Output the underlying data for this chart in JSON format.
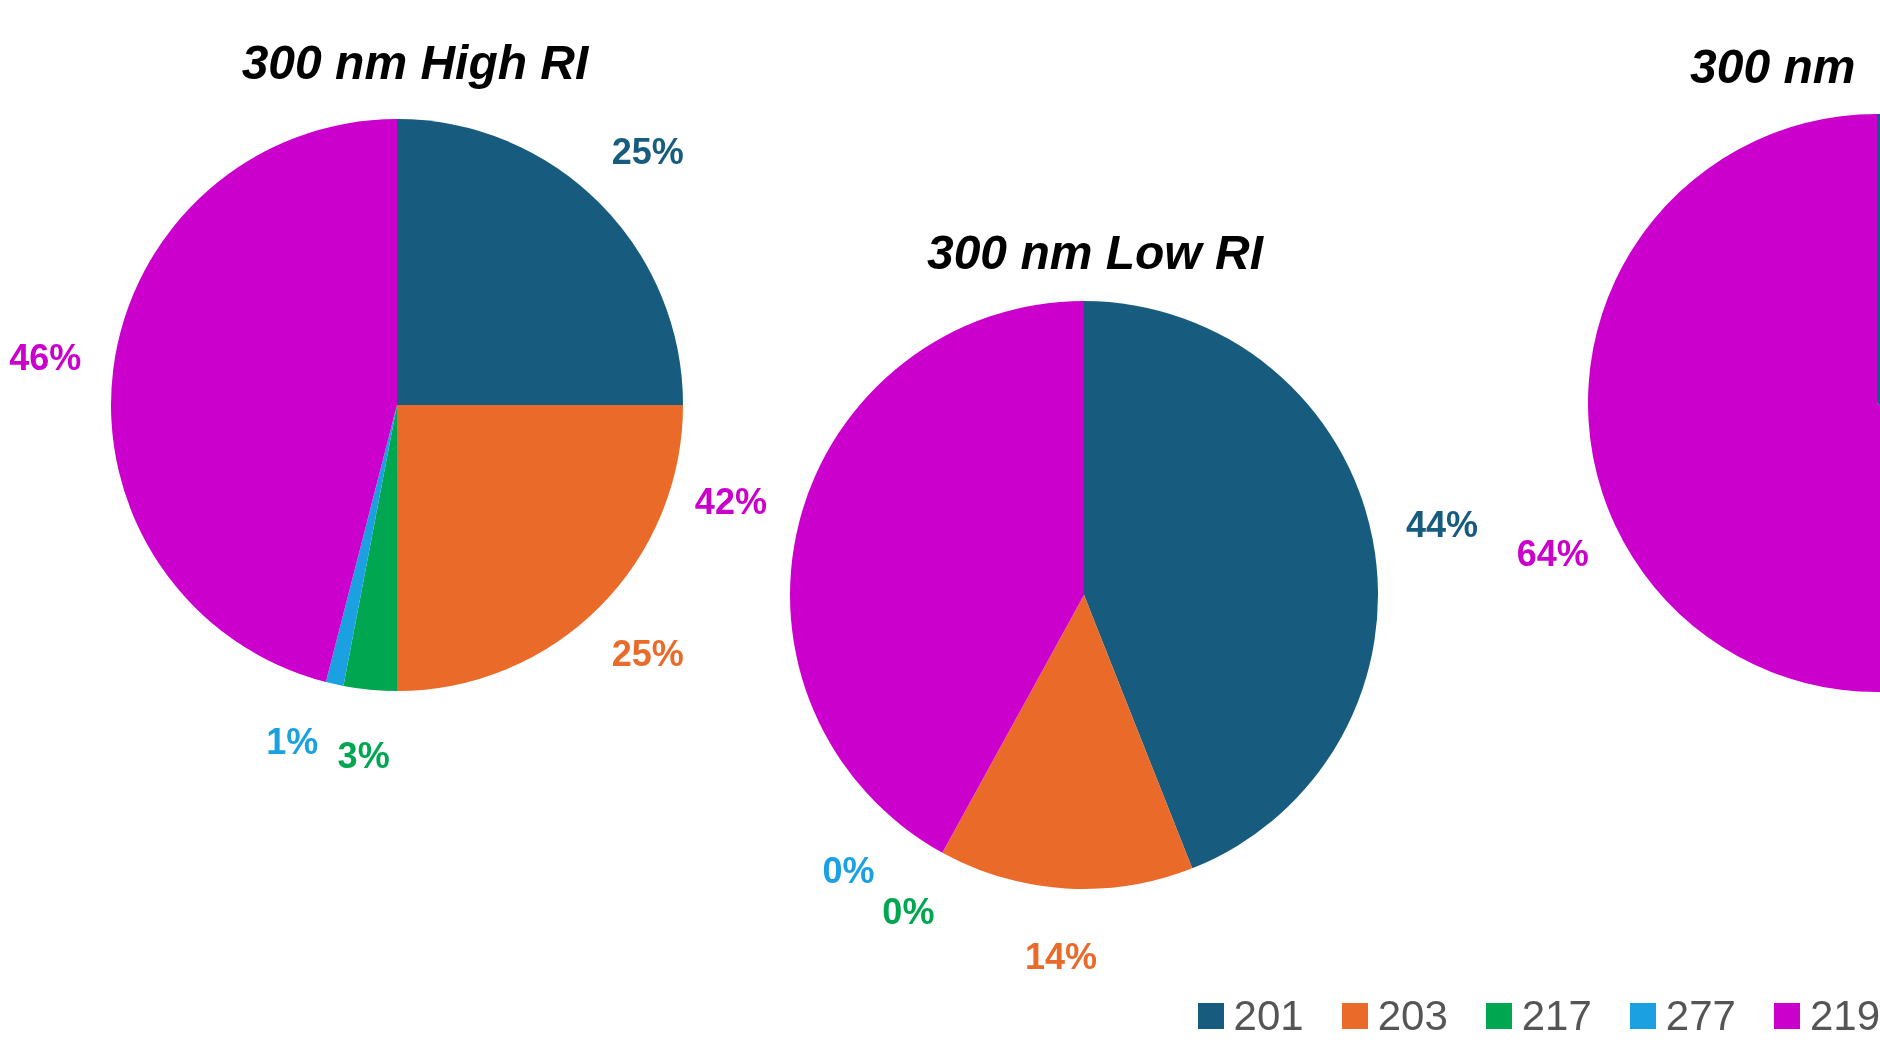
{
  "chart_data": [
    {
      "type": "pie",
      "title": "300 nm High RI",
      "categories": [
        "201",
        "203",
        "217",
        "277",
        "219"
      ],
      "values": [
        25,
        25,
        3,
        1,
        46
      ],
      "colors": [
        "#175b7e",
        "#ea6a2a",
        "#00a650",
        "#1ba1e2",
        "#cc00cc"
      ],
      "value_labels": [
        "25%",
        "25%",
        "3%",
        "1%",
        "46%"
      ],
      "legend": "bottom right"
    },
    {
      "type": "pie",
      "title": "300 nm Low RI",
      "categories": [
        null,
        null,
        null,
        null,
        null
      ],
      "values": [
        44,
        14,
        0,
        0,
        42
      ],
      "colors": [
        "#175b7e",
        "#ea6a2a",
        "#00a650",
        "#1ba1e2",
        "#cc00cc"
      ],
      "value_labels": [
        "44%",
        "14%",
        "0%",
        "0%",
        "42%"
      ]
    },
    {
      "type": "pie",
      "title": "300 nm",
      "categories": [
        null,
        null
      ],
      "values": [
        36,
        64
      ],
      "colors": [
        "#175b7e",
        "#cc00cc"
      ],
      "value_labels": [
        null,
        "64%"
      ]
    }
  ]
}
